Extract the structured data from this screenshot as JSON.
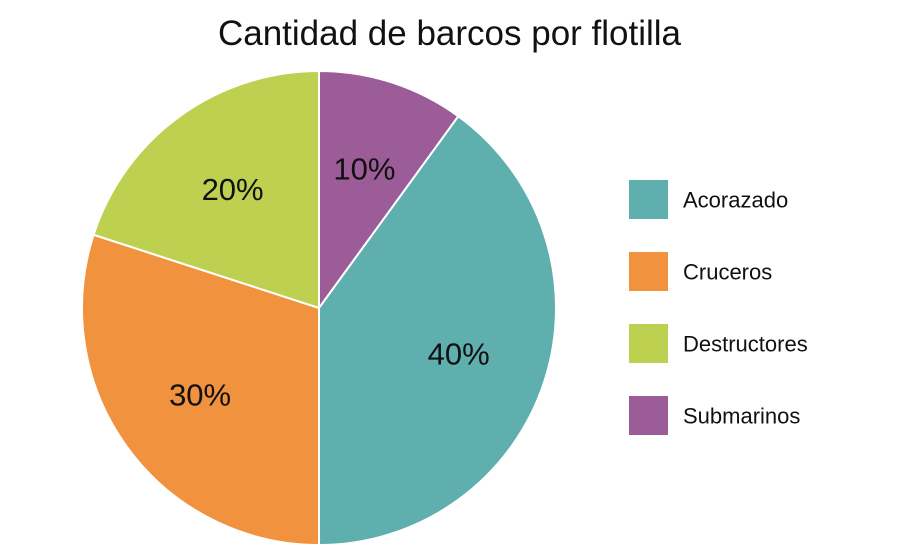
{
  "chart_data": {
    "type": "pie",
    "title": "Cantidad de barcos por flotilla",
    "categories": [
      "Acorazado",
      "Cruceros",
      "Destructores",
      "Submarinos"
    ],
    "values": [
      40,
      30,
      20,
      10
    ],
    "data_labels": [
      "40%",
      "30%",
      "20%",
      "10%"
    ],
    "colors": [
      "#5fafaf",
      "#f0923e",
      "#bdd04f",
      "#9c5c98"
    ],
    "legend": {
      "position": "right",
      "entries": [
        "Acorazado",
        "Cruceros",
        "Destructores",
        "Submarinos"
      ]
    },
    "start_angle": "12 o'clock",
    "direction": "clockwise",
    "order": [
      "Submarinos",
      "Acorazado",
      "Cruceros",
      "Destructores"
    ]
  }
}
